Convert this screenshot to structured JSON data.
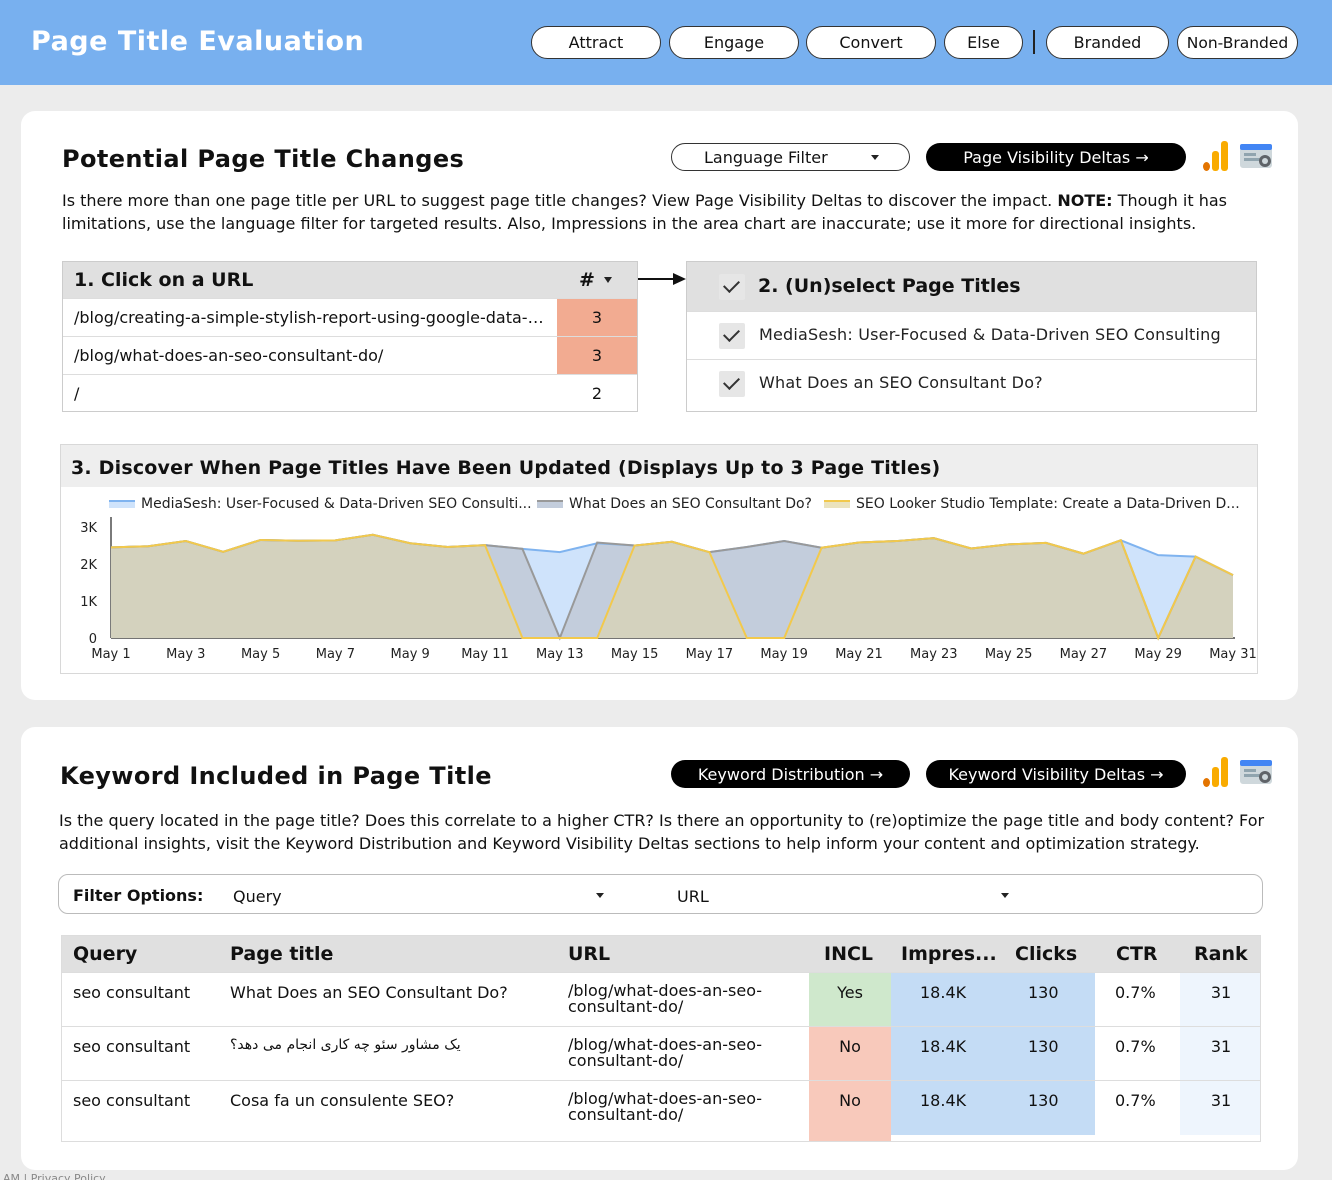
{
  "header": {
    "title": "Page Title Evaluation",
    "pills": [
      "Attract",
      "Engage",
      "Convert",
      "Else",
      "Branded",
      "Non-Branded"
    ]
  },
  "section1": {
    "title": "Potential Page Title Changes",
    "language_filter": "Language Filter",
    "visibility_button": "Page Visibility Deltas →",
    "desc_part1": "Is there more than one page title per URL to suggest page title changes? View Page Visibility Deltas to discover the impact. ",
    "desc_note": "NOTE:",
    "desc_part2": " Though it has limitations, use the language filter for targeted results. Also, Impressions in the area chart are inaccurate; use it more for directional insights.",
    "url_table": {
      "header_url": "1. Click on a URL",
      "header_count": "#",
      "rows": [
        {
          "url": "/blog/creating-a-simple-stylish-report-using-google-data-studio/",
          "count": "3"
        },
        {
          "url": "/blog/what-does-an-seo-consultant-do/",
          "count": "3"
        },
        {
          "url": "/",
          "count": "2"
        }
      ]
    },
    "title_list": {
      "header": "2. (Un)select Page Titles",
      "items": [
        "MediaSesh: User-Focused & Data-Driven SEO Consulting",
        "What Does an SEO Consultant Do?"
      ]
    }
  },
  "chart_section": {
    "title": "3. Discover When Page Titles Have Been Updated (Displays Up to 3 Page Titles)"
  },
  "chart_data": {
    "type": "area",
    "x": [
      "May 1",
      "May 2",
      "May 3",
      "May 4",
      "May 5",
      "May 6",
      "May 7",
      "May 8",
      "May 9",
      "May 10",
      "May 11",
      "May 12",
      "May 13",
      "May 14",
      "May 15",
      "May 16",
      "May 17",
      "May 18",
      "May 19",
      "May 20",
      "May 21",
      "May 22",
      "May 23",
      "May 24",
      "May 25",
      "May 26",
      "May 27",
      "May 28",
      "May 29",
      "May 30",
      "May 31"
    ],
    "x_tick_labels": [
      "May 1",
      "May 3",
      "May 5",
      "May 7",
      "May 9",
      "May 11",
      "May 13",
      "May 15",
      "May 17",
      "May 19",
      "May 21",
      "May 23",
      "May 25",
      "May 27",
      "May 29",
      "May 31"
    ],
    "y_tick_labels": [
      "0",
      "1K",
      "2K",
      "3K"
    ],
    "ylim": [
      0,
      3000
    ],
    "series": [
      {
        "name": "MediaSesh: User-Focused & Data-Driven SEO Consulti...",
        "color": "#7fb3ef",
        "fill": "#cfe3fb",
        "values": [
          2450,
          2480,
          2620,
          2330,
          2650,
          2630,
          2640,
          2790,
          2560,
          2460,
          2510,
          2410,
          2320,
          2560,
          2500,
          2600,
          2320,
          2460,
          2620,
          2440,
          2580,
          2620,
          2700,
          2420,
          2530,
          2570,
          2280,
          2640,
          2240,
          2200,
          1700
        ]
      },
      {
        "name": "What Does an SEO Consultant Do?",
        "color": "#999999",
        "fill": "#c3cddc",
        "values": [
          2450,
          2480,
          2620,
          2330,
          2650,
          2630,
          2640,
          2790,
          2560,
          2460,
          2510,
          2410,
          0,
          2580,
          2500,
          2600,
          2320,
          2460,
          2620,
          2440,
          2580,
          2620,
          2700,
          2420,
          2530,
          2570,
          2280,
          2640,
          0,
          2200,
          1700
        ]
      },
      {
        "name": "SEO Looker Studio Template: Create a Data-Driven D...",
        "color": "#f2c94c",
        "fill": "#d4d2be",
        "values": [
          2450,
          2480,
          2620,
          2330,
          2650,
          2630,
          2640,
          2790,
          2560,
          2460,
          2510,
          0,
          0,
          0,
          2500,
          2600,
          2320,
          0,
          0,
          2440,
          2580,
          2620,
          2700,
          2420,
          2530,
          2570,
          2280,
          2640,
          0,
          2200,
          1700
        ]
      }
    ]
  },
  "section2": {
    "title": "Keyword Included in Page Title",
    "kw_dist_button": "Keyword Distribution →",
    "kw_vis_button": "Keyword Visibility Deltas →",
    "desc": "Is the query located in the page title? Does this correlate to a higher CTR? Is there an opportunity to (re)optimize the page title and body content? For additional insights, visit the Keyword Distribution and Keyword Visibility Deltas sections to help inform your content and optimization strategy.",
    "filter_label": "Filter Options:",
    "filter_query": "Query",
    "filter_url": "URL",
    "table": {
      "headers": [
        "Query",
        "Page title",
        "URL",
        "INCL",
        "Impres...",
        "Clicks",
        "CTR",
        "Rank"
      ],
      "rows": [
        {
          "query": "seo consultant",
          "title": "What Does an SEO Consultant Do?",
          "url": "/blog/what-does-an-seo-consultant-do/",
          "incl": "Yes",
          "impr": "18.4K",
          "clicks": "130",
          "ctr": "0.7%",
          "rank": "31"
        },
        {
          "query": "seo consultant",
          "title": "یک مشاور سئو چه کاری انجام می دهد؟",
          "url": "/blog/what-does-an-seo-consultant-do/",
          "incl": "No",
          "impr": "18.4K",
          "clicks": "130",
          "ctr": "0.7%",
          "rank": "31"
        },
        {
          "query": "seo consultant",
          "title": "Cosa fa un consulente SEO?",
          "url": "/blog/what-does-an-seo-consultant-do/",
          "incl": "No",
          "impr": "18.4K",
          "clicks": "130",
          "ctr": "0.7%",
          "rank": "31"
        }
      ]
    }
  },
  "footer": "AM | Privacy Policy",
  "colors": {
    "header_bg": "#78b0ef",
    "incl_yes": "#cfe8cc",
    "incl_no": "#f8c9bb",
    "impr_bg": "#c4dcf5",
    "rank_bg": "#eef5fd",
    "hot_count": "#f2ab91"
  }
}
